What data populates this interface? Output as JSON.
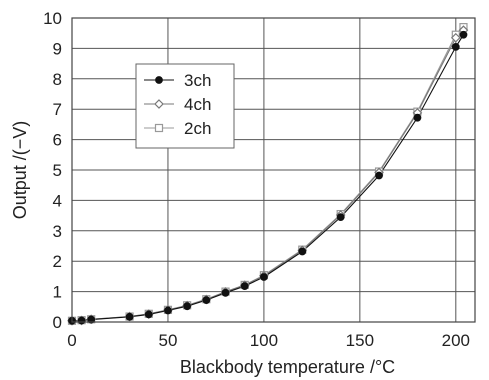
{
  "chart_data": {
    "type": "line",
    "title": "",
    "xlabel": "Blackbody temperature /°C",
    "ylabel": "Output /(−V)",
    "xlim": [
      0,
      210
    ],
    "ylim": [
      0,
      10
    ],
    "x_ticks": [
      "0",
      "50",
      "100",
      "150",
      "200"
    ],
    "y_ticks": [
      "0",
      "1",
      "2",
      "3",
      "4",
      "5",
      "6",
      "7",
      "8",
      "9",
      "10"
    ],
    "grid": true,
    "legend_position": "upper-left",
    "x": [
      0,
      5,
      10,
      30,
      40,
      50,
      60,
      70,
      80,
      90,
      100,
      120,
      140,
      160,
      180,
      200,
      204
    ],
    "series": [
      {
        "name": "3ch",
        "marker": "filled-circle",
        "color": "#111111",
        "values": [
          0.04,
          0.05,
          0.08,
          0.17,
          0.25,
          0.38,
          0.52,
          0.72,
          0.96,
          1.18,
          1.48,
          2.32,
          3.45,
          4.82,
          6.72,
          9.05,
          9.45
        ]
      },
      {
        "name": "4ch",
        "marker": "open-diamond",
        "color": "#777777",
        "values": [
          0.04,
          0.05,
          0.09,
          0.18,
          0.26,
          0.39,
          0.54,
          0.74,
          0.99,
          1.21,
          1.52,
          2.36,
          3.52,
          4.92,
          6.88,
          9.35,
          9.6
        ]
      },
      {
        "name": "2ch",
        "marker": "open-square",
        "color": "#999999",
        "values": [
          0.04,
          0.06,
          0.09,
          0.18,
          0.27,
          0.4,
          0.55,
          0.75,
          1.0,
          1.22,
          1.54,
          2.38,
          3.55,
          4.95,
          6.92,
          9.45,
          9.7
        ]
      }
    ]
  }
}
